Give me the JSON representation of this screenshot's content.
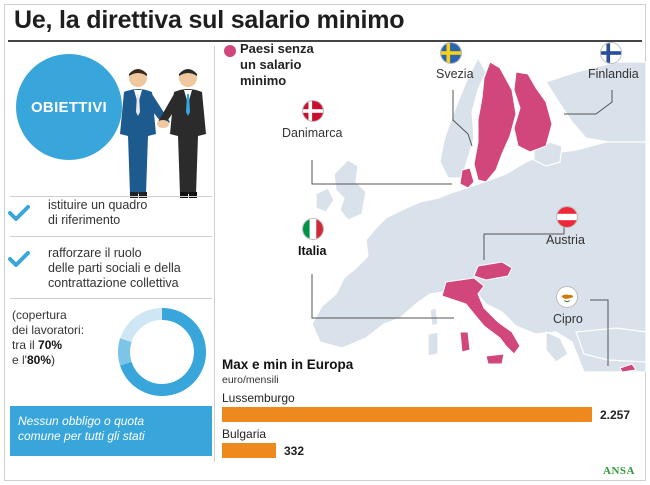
{
  "header": {
    "title": "Ue, la direttiva sul salario minimo"
  },
  "objectives": {
    "label": "OBIETTIVI",
    "items": [
      {
        "text_1": "istituire un quadro",
        "text_2": "di riferimento"
      },
      {
        "text_1": "rafforzare il ruolo",
        "text_2": "delle parti sociali e della",
        "text_3": "contrattazione collettiva"
      }
    ],
    "coverage": {
      "line_1": "(copertura",
      "line_2": "dei lavoratori:",
      "line_3_pre": "tra il ",
      "line_3_bold": "70%",
      "line_4_pre": "e l'",
      "line_4_bold": "80%",
      "line_4_post": ")",
      "range_pct": [
        70,
        80
      ]
    },
    "note": {
      "line_1": "Nessun obbligo o quota",
      "line_2": "comune per tutti gli stati"
    }
  },
  "map": {
    "legend": {
      "line_1": "Paesi senza",
      "line_2": "un salario",
      "line_3": "minimo",
      "color": "#d2477b"
    },
    "countries": [
      {
        "name": "Svezia",
        "flag": "flag-sweden"
      },
      {
        "name": "Finlandia",
        "flag": "flag-finland"
      },
      {
        "name": "Danimarca",
        "flag": "flag-denmark"
      },
      {
        "name": "Austria",
        "flag": "flag-austria"
      },
      {
        "name": "Italia",
        "flag": "flag-italy"
      },
      {
        "name": "Cipro",
        "flag": "flag-cyprus"
      }
    ]
  },
  "chart_data": {
    "type": "bar",
    "title": "Max e min in Europa",
    "subtitle": "euro/mensili",
    "categories": [
      "Lussemburgo",
      "Bulgaria"
    ],
    "values": [
      2257,
      332
    ],
    "value_labels": [
      "2.257",
      "332"
    ],
    "color": "#ec8a1d"
  },
  "footer": {
    "credit": "ANSA"
  },
  "colors": {
    "accent_blue": "#39a6db",
    "no_minimum_wage": "#d2477b",
    "bar_orange": "#ec8a1d",
    "map_land": "#d9e1ea"
  }
}
